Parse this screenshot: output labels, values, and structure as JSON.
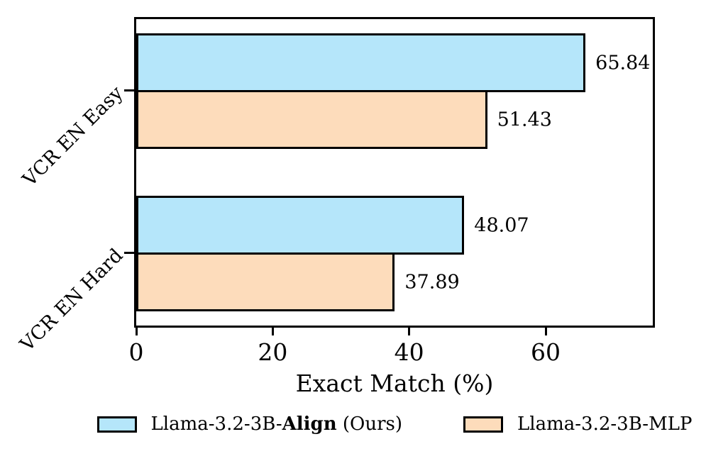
{
  "figure": {
    "background_color": "#ffffff",
    "text_color": "#000000"
  },
  "chart_data": {
    "type": "bar",
    "orientation": "horizontal",
    "title": "",
    "xlabel": "Exact Match (%)",
    "ylabel": "",
    "categories": [
      "VCR EN Easy",
      "VCR EN Hard"
    ],
    "series": [
      {
        "name": "Llama-3.2-3B-Align (Ours)",
        "color": "#B5E6FA",
        "edge_color": "#000000",
        "values": [
          65.84,
          48.07
        ]
      },
      {
        "name": "Llama-3.2-3B-MLP",
        "color": "#FDDCBB",
        "edge_color": "#000000",
        "values": [
          51.43,
          37.89
        ]
      }
    ],
    "value_labels": [
      "65.84",
      "51.43",
      "48.07",
      "37.89"
    ],
    "xlim": [
      0,
      75.7
    ],
    "xticks": [
      0,
      20,
      40,
      60
    ],
    "xtick_labels": [
      "0",
      "20",
      "40",
      "60"
    ],
    "grid": false,
    "legend_position": "bottom"
  },
  "legend": {
    "items": [
      {
        "prefix": "Llama-3.2-3B-",
        "bold": "Align",
        "suffix": " (Ours)",
        "color": "#B5E6FA"
      },
      {
        "prefix": "Llama-3.2-3B-MLP",
        "bold": "",
        "suffix": "",
        "color": "#FDDCBB"
      }
    ]
  }
}
